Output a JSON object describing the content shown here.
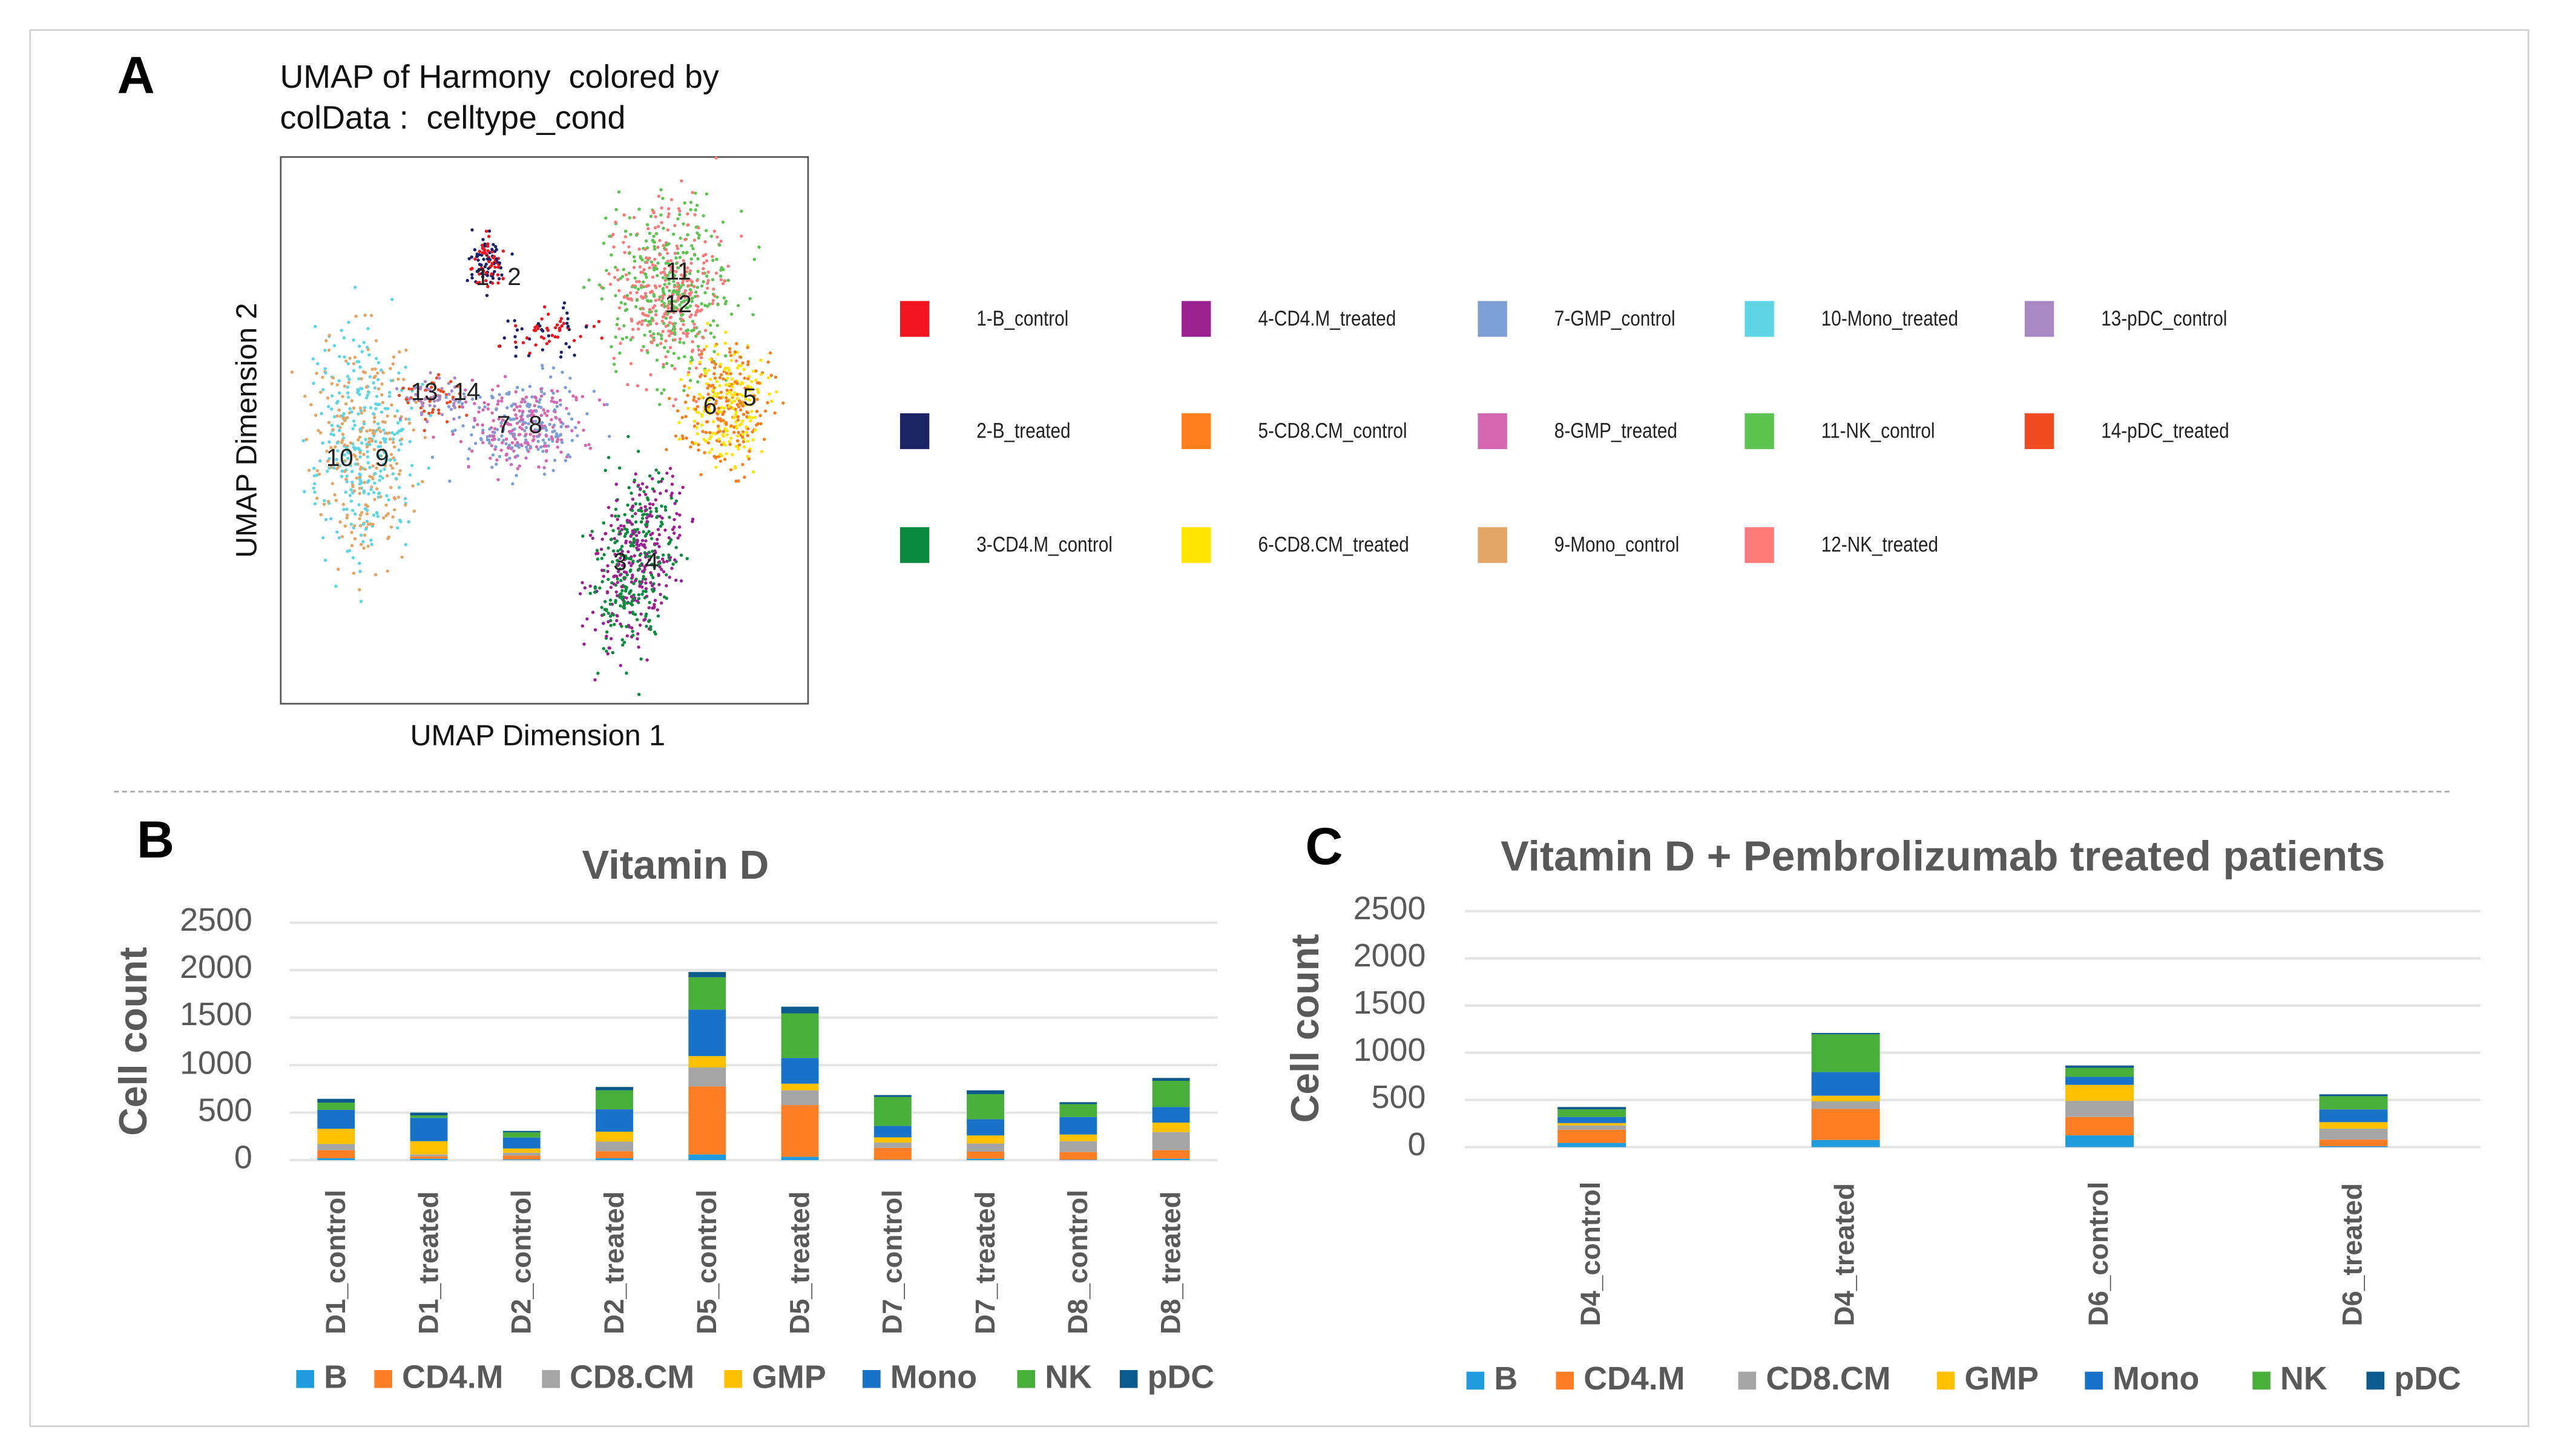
{
  "panel_labels": {
    "a": "A",
    "b": "B",
    "c": "C"
  },
  "umap": {
    "title_line1": "UMAP of Harmony  colored by",
    "title_line2": "colData :  celltype_cond",
    "xlabel": "UMAP Dimension 1",
    "ylabel": "UMAP Dimension 2",
    "cluster_labels": [
      "1",
      "2",
      "3",
      "4",
      "5",
      "6",
      "7",
      "8",
      "9",
      "10",
      "11",
      "12",
      "13",
      "14"
    ],
    "legend": [
      {
        "label": "1-B_control",
        "color": "#F0141E"
      },
      {
        "label": "2-B_treated",
        "color": "#1C2366"
      },
      {
        "label": "3-CD4.M_control",
        "color": "#098A3C"
      },
      {
        "label": "4-CD4.M_treated",
        "color": "#9B2190"
      },
      {
        "label": "5-CD8.CM_control",
        "color": "#FF7F1E"
      },
      {
        "label": "6-CD8.CM_treated",
        "color": "#FFE500"
      },
      {
        "label": "7-GMP_control",
        "color": "#7F9FD4"
      },
      {
        "label": "8-GMP_treated",
        "color": "#D467B0"
      },
      {
        "label": "9-Mono_control",
        "color": "#E3A565"
      },
      {
        "label": "10-Mono_treated",
        "color": "#5ED5E3"
      },
      {
        "label": "11-NK_control",
        "color": "#5DC452"
      },
      {
        "label": "12-NK_treated",
        "color": "#FF7B7B"
      },
      {
        "label": "13-pDC_control",
        "color": "#A988C6"
      },
      {
        "label": "14-pDC_treated",
        "color": "#F04A22"
      }
    ]
  },
  "chart_data": [
    {
      "type": "bar",
      "stacked": true,
      "title": "Vitamin D",
      "ylabel": "Cell count",
      "xlabel": "",
      "ylim": [
        0,
        2500
      ],
      "yticks": [
        "0",
        "500",
        "1000",
        "1500",
        "2000",
        "2500"
      ],
      "grid": true,
      "legend_position": "bottom",
      "categories": [
        "D1_control",
        "D1_treated",
        "D2_control",
        "D2_treated",
        "D5_control",
        "D5_treated",
        "D7_control",
        "D7_treated",
        "D8_control",
        "D8_treated"
      ],
      "series": [
        {
          "name": "B",
          "color": "#1F9BDE",
          "values": [
            20,
            15,
            8,
            20,
            60,
            35,
            5,
            15,
            5,
            15
          ]
        },
        {
          "name": "CD4.M",
          "color": "#FF7F27",
          "values": [
            85,
            25,
            40,
            75,
            715,
            545,
            125,
            75,
            80,
            90
          ]
        },
        {
          "name": "CD8.CM",
          "color": "#A5A5A5",
          "values": [
            65,
            20,
            30,
            100,
            200,
            155,
            55,
            85,
            115,
            190
          ]
        },
        {
          "name": "GMP",
          "color": "#FFC000",
          "values": [
            160,
            140,
            45,
            105,
            120,
            70,
            55,
            85,
            70,
            100
          ]
        },
        {
          "name": "Mono",
          "color": "#1872C8",
          "values": [
            200,
            245,
            115,
            235,
            490,
            270,
            120,
            170,
            185,
            165
          ]
        },
        {
          "name": "NK",
          "color": "#47AF3A",
          "values": [
            75,
            25,
            55,
            200,
            340,
            470,
            305,
            265,
            135,
            275
          ]
        },
        {
          "name": "pDC",
          "color": "#0B5A8C",
          "values": [
            40,
            30,
            15,
            35,
            55,
            70,
            20,
            40,
            20,
            30
          ]
        }
      ]
    },
    {
      "type": "bar",
      "stacked": true,
      "title": "Vitamin D + Pembrolizumab treated patients",
      "ylabel": "Cell count",
      "xlabel": "",
      "ylim": [
        0,
        2500
      ],
      "yticks": [
        "0",
        "500",
        "1000",
        "1500",
        "2000",
        "2500"
      ],
      "grid": true,
      "legend_position": "bottom",
      "categories": [
        "D4_control",
        "D4_treated",
        "D6_control",
        "D6_treated"
      ],
      "series": [
        {
          "name": "B",
          "color": "#1F9BDE",
          "values": [
            45,
            75,
            125,
            10
          ]
        },
        {
          "name": "CD4.M",
          "color": "#FF7F27",
          "values": [
            140,
            330,
            195,
            70
          ]
        },
        {
          "name": "CD8.CM",
          "color": "#A5A5A5",
          "values": [
            45,
            80,
            170,
            115
          ]
        },
        {
          "name": "GMP",
          "color": "#FFC000",
          "values": [
            25,
            60,
            170,
            70
          ]
        },
        {
          "name": "Mono",
          "color": "#1872C8",
          "values": [
            65,
            250,
            85,
            135
          ]
        },
        {
          "name": "NK",
          "color": "#47AF3A",
          "values": [
            80,
            400,
            95,
            140
          ]
        },
        {
          "name": "pDC",
          "color": "#0B5A8C",
          "values": [
            25,
            15,
            25,
            20
          ]
        }
      ]
    }
  ]
}
